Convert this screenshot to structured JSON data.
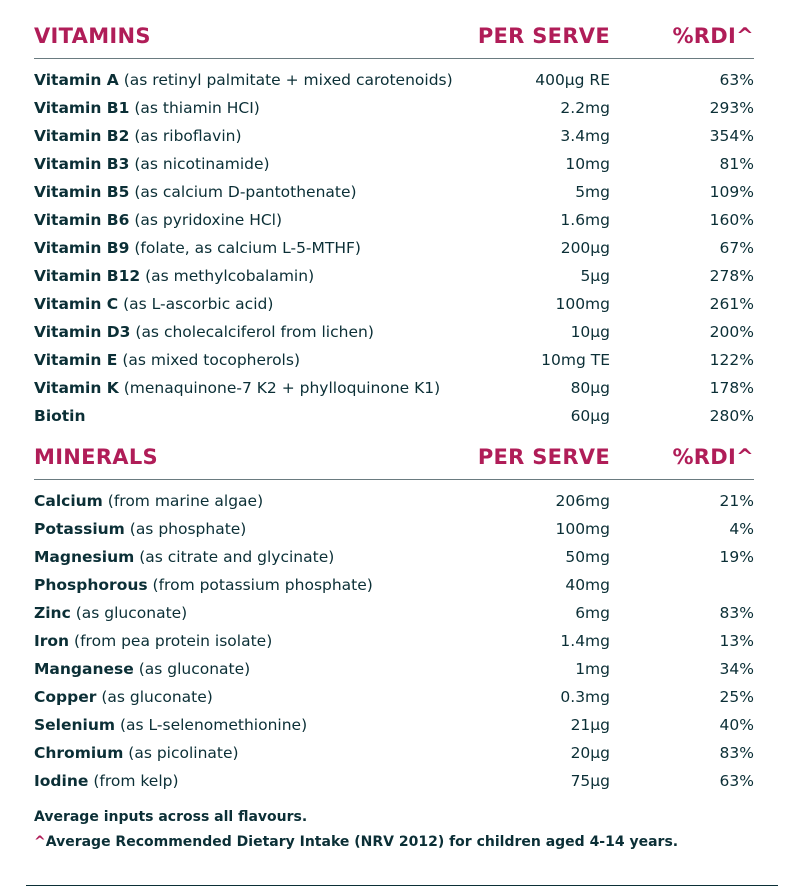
{
  "vitamins": {
    "heading": "VITAMINS",
    "per_serve_label": "PER SERVE",
    "rdi_label": "%RDI^",
    "rows": [
      {
        "name": "Vitamin A",
        "desc": "(as retinyl palmitate + mixed carotenoids)",
        "serve": "400µg RE",
        "rdi": "63%"
      },
      {
        "name": "Vitamin B1",
        "desc": "(as thiamin HCI)",
        "serve": "2.2mg",
        "rdi": "293%"
      },
      {
        "name": "Vitamin B2",
        "desc": "(as riboflavin)",
        "serve": "3.4mg",
        "rdi": "354%"
      },
      {
        "name": "Vitamin B3",
        "desc": "(as nicotinamide)",
        "serve": "10mg",
        "rdi": "81%"
      },
      {
        "name": "Vitamin B5",
        "desc": "(as calcium D-pantothenate)",
        "serve": "5mg",
        "rdi": "109%"
      },
      {
        "name": "Vitamin B6",
        "desc": "(as pyridoxine HCl)",
        "serve": "1.6mg",
        "rdi": "160%"
      },
      {
        "name": "Vitamin B9",
        "desc": "(folate, as calcium L-5-MTHF)",
        "serve": "200µg",
        "rdi": "67%"
      },
      {
        "name": "Vitamin B12",
        "desc": "(as methylcobalamin)",
        "serve": "5µg",
        "rdi": "278%"
      },
      {
        "name": "Vitamin C",
        "desc": "(as L-ascorbic acid)",
        "serve": "100mg",
        "rdi": "261%"
      },
      {
        "name": "Vitamin D3",
        "desc": "(as cholecalciferol from lichen)",
        "serve": "10µg",
        "rdi": "200%"
      },
      {
        "name": "Vitamin E",
        "desc": "(as mixed tocopherols)",
        "serve": "10mg TE",
        "rdi": "122%"
      },
      {
        "name": "Vitamin K",
        "desc": "(menaquinone-7 K2 + phylloquinone K1)",
        "serve": "80µg",
        "rdi": "178%"
      },
      {
        "name": "Biotin",
        "desc": "",
        "serve": "60µg",
        "rdi": "280%"
      }
    ]
  },
  "minerals": {
    "heading": "MINERALS",
    "per_serve_label": "PER SERVE",
    "rdi_label": "%RDI^",
    "rows": [
      {
        "name": "Calcium",
        "desc": "(from marine algae)",
        "serve": "206mg",
        "rdi": "21%"
      },
      {
        "name": "Potassium",
        "desc": "(as phosphate)",
        "serve": "100mg",
        "rdi": "4%"
      },
      {
        "name": "Magnesium",
        "desc": "(as citrate and glycinate)",
        "serve": "50mg",
        "rdi": "19%"
      },
      {
        "name": "Phosphorous",
        "desc": "(from potassium phosphate)",
        "serve": "40mg",
        "rdi": ""
      },
      {
        "name": "Zinc",
        "desc": "(as gluconate)",
        "serve": "6mg",
        "rdi": "83%"
      },
      {
        "name": "Iron",
        "desc": "(from pea protein isolate)",
        "serve": "1.4mg",
        "rdi": "13%"
      },
      {
        "name": "Manganese",
        "desc": "(as gluconate)",
        "serve": "1mg",
        "rdi": "34%"
      },
      {
        "name": "Copper",
        "desc": "(as gluconate)",
        "serve": "0.3mg",
        "rdi": "25%"
      },
      {
        "name": "Selenium",
        "desc": "(as L-selenomethionine)",
        "serve": "21µg",
        "rdi": "40%"
      },
      {
        "name": "Chromium",
        "desc": "(as picolinate)",
        "serve": "20µg",
        "rdi": "83%"
      },
      {
        "name": "Iodine",
        "desc": "(from kelp)",
        "serve": "75µg",
        "rdi": "63%"
      }
    ]
  },
  "notes": {
    "line1": "Average inputs across all flavours.",
    "caret": "^",
    "line2": "Average Recommended Dietary Intake (NRV 2012) for children aged 4-14 years."
  },
  "colors": {
    "accent": "#b01d58",
    "text": "#0b2f36"
  }
}
